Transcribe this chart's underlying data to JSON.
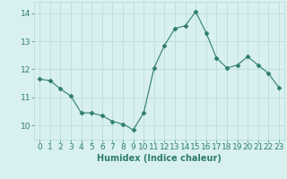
{
  "x": [
    0,
    1,
    2,
    3,
    4,
    5,
    6,
    7,
    8,
    9,
    10,
    11,
    12,
    13,
    14,
    15,
    16,
    17,
    18,
    19,
    20,
    21,
    22,
    23
  ],
  "y": [
    11.65,
    11.6,
    11.3,
    11.05,
    10.45,
    10.45,
    10.35,
    10.15,
    10.05,
    9.85,
    10.45,
    12.05,
    12.85,
    13.45,
    13.55,
    14.05,
    13.3,
    12.4,
    12.05,
    12.15,
    12.45,
    12.15,
    11.85,
    11.35
  ],
  "line_color": "#2e7d6e",
  "marker": "D",
  "marker_size": 2.5,
  "bg_color": "#d8f0f0",
  "grid_color": "#b8d8d8",
  "xlabel": "Humidex (Indice chaleur)",
  "ylim": [
    9.5,
    14.4
  ],
  "xlim": [
    -0.5,
    23.5
  ],
  "yticks": [
    10,
    11,
    12,
    13,
    14
  ],
  "xticks": [
    0,
    1,
    2,
    3,
    4,
    5,
    6,
    7,
    8,
    9,
    10,
    11,
    12,
    13,
    14,
    15,
    16,
    17,
    18,
    19,
    20,
    21,
    22,
    23
  ],
  "label_color": "#2e7d6e",
  "axis_fontsize": 7,
  "tick_fontsize": 6.5
}
